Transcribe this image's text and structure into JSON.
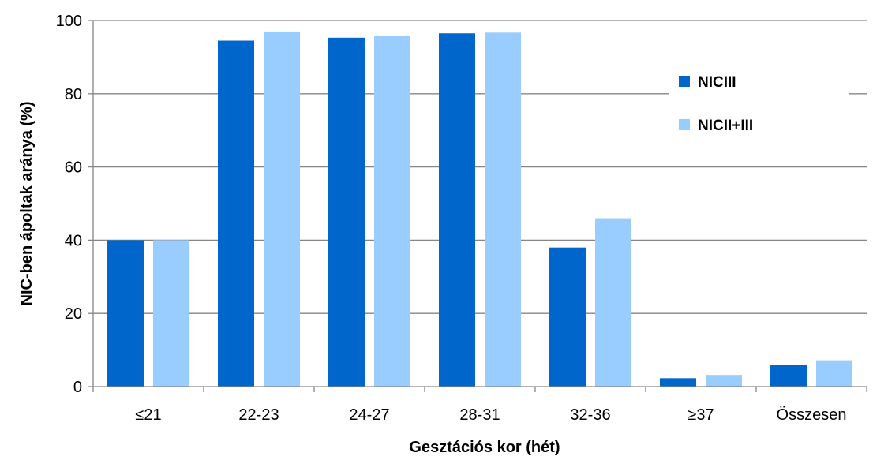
{
  "chart_data": {
    "type": "bar",
    "categories": [
      "≤21",
      "22-23",
      "24-27",
      "28-31",
      "32-36",
      "≥37",
      "Összesen"
    ],
    "series": [
      {
        "name": "NICIII",
        "color": "#0066CC",
        "values": [
          40,
          94.5,
          95.3,
          96.5,
          38,
          2.3,
          6
        ]
      },
      {
        "name": "NICII+III",
        "color": "#99CCFF",
        "values": [
          40,
          97,
          95.7,
          96.7,
          46,
          3.2,
          7.2
        ]
      }
    ],
    "xlabel": "Gesztációs kor (hét)",
    "ylabel": "NIC-ben ápoltak aránya (%)",
    "ylim": [
      0,
      100
    ],
    "yticks": [
      0,
      20,
      40,
      60,
      80,
      100
    ],
    "grid": true,
    "legend_position": "top-right",
    "gridline_color": "#868686"
  }
}
